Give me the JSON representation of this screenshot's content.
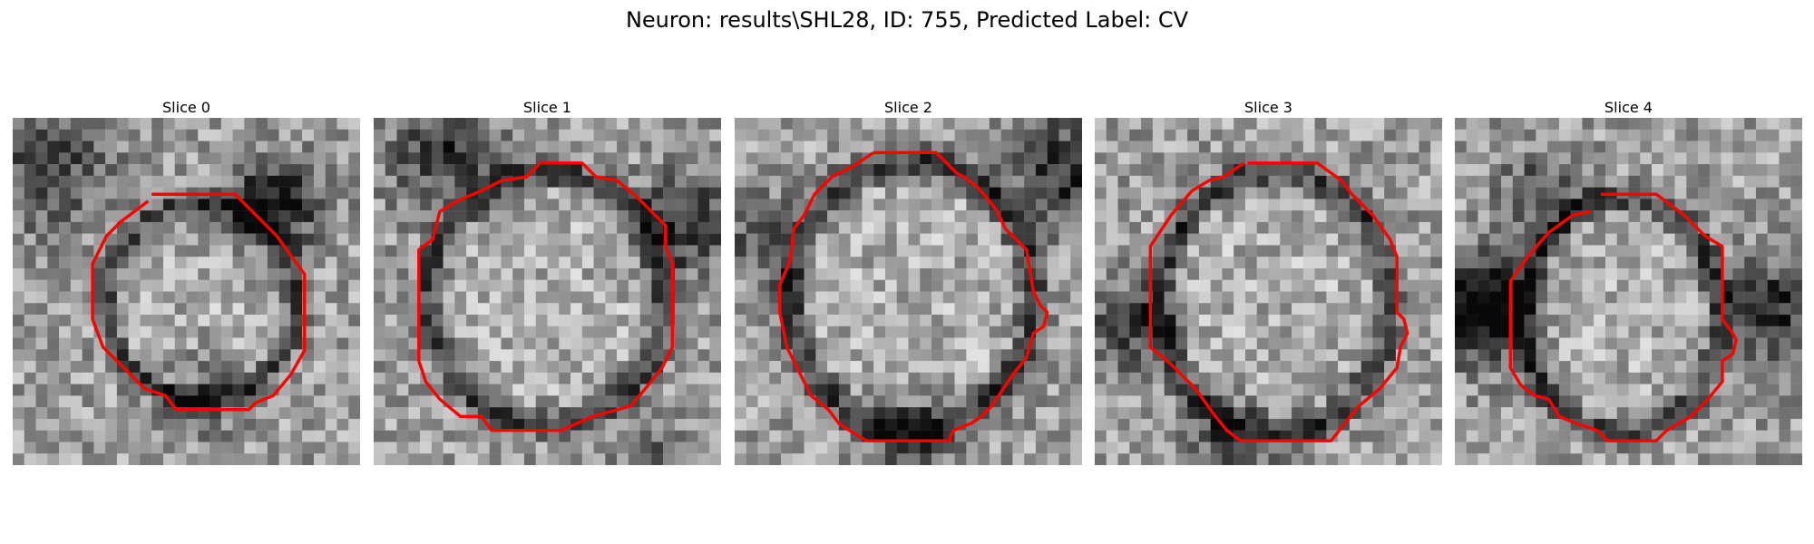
{
  "figure": {
    "title": "Neuron: results\\SHL28, ID: 755, Predicted Label: CV"
  },
  "contour_color": "#ff0000",
  "slices": [
    {
      "title": "Slice 0"
    },
    {
      "title": "Slice 1"
    },
    {
      "title": "Slice 2"
    },
    {
      "title": "Slice 3"
    },
    {
      "title": "Slice 4"
    }
  ]
}
